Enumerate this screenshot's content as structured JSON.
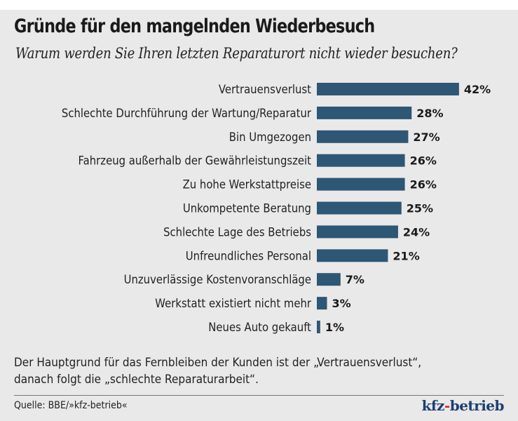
{
  "title": "Gründe für den mangelnden Wiederbesuch",
  "subtitle": "Warum werden Sie Ihren letzten Reparaturort nicht wieder besuchen?",
  "note_line1": "Der Hauptgrund für das Fernbleiben der Kunden ist der „Vertrauensverlust“,",
  "note_line2": "danach folgt die „schlechte Reparaturarbeit“.",
  "source": "Quelle: BBE/»kfz-betrieb«",
  "logo": "kfz-betrieb",
  "colors": {
    "bar": "#2e5675",
    "background": "#e9e9e9"
  },
  "chart_data": {
    "type": "bar",
    "orientation": "horizontal",
    "title": "Gründe für den mangelnden Wiederbesuch",
    "subtitle": "Warum werden Sie Ihren letzten Reparaturort nicht wieder besuchen?",
    "categories": [
      "Vertrauensverlust",
      "Schlechte Durchführung der Wartung/Reparatur",
      "Bin Umgezogen",
      "Fahrzeug außerhalb der Gewährleistungszeit",
      "Zu hohe Werkstattpreise",
      "Unkompetente Beratung",
      "Schlechte Lage des Betriebs",
      "Unfreundliches Personal",
      "Unzuverlässige Kostenvoranschläge",
      "Werkstatt existiert nicht mehr",
      "Neues Auto gekauft"
    ],
    "values": [
      42,
      28,
      27,
      26,
      26,
      25,
      24,
      21,
      7,
      3,
      1
    ],
    "value_labels": [
      "42%",
      "28%",
      "27%",
      "26%",
      "26%",
      "25%",
      "24%",
      "21%",
      "7%",
      "3%",
      "1%"
    ],
    "unit": "%",
    "grid": false
  }
}
